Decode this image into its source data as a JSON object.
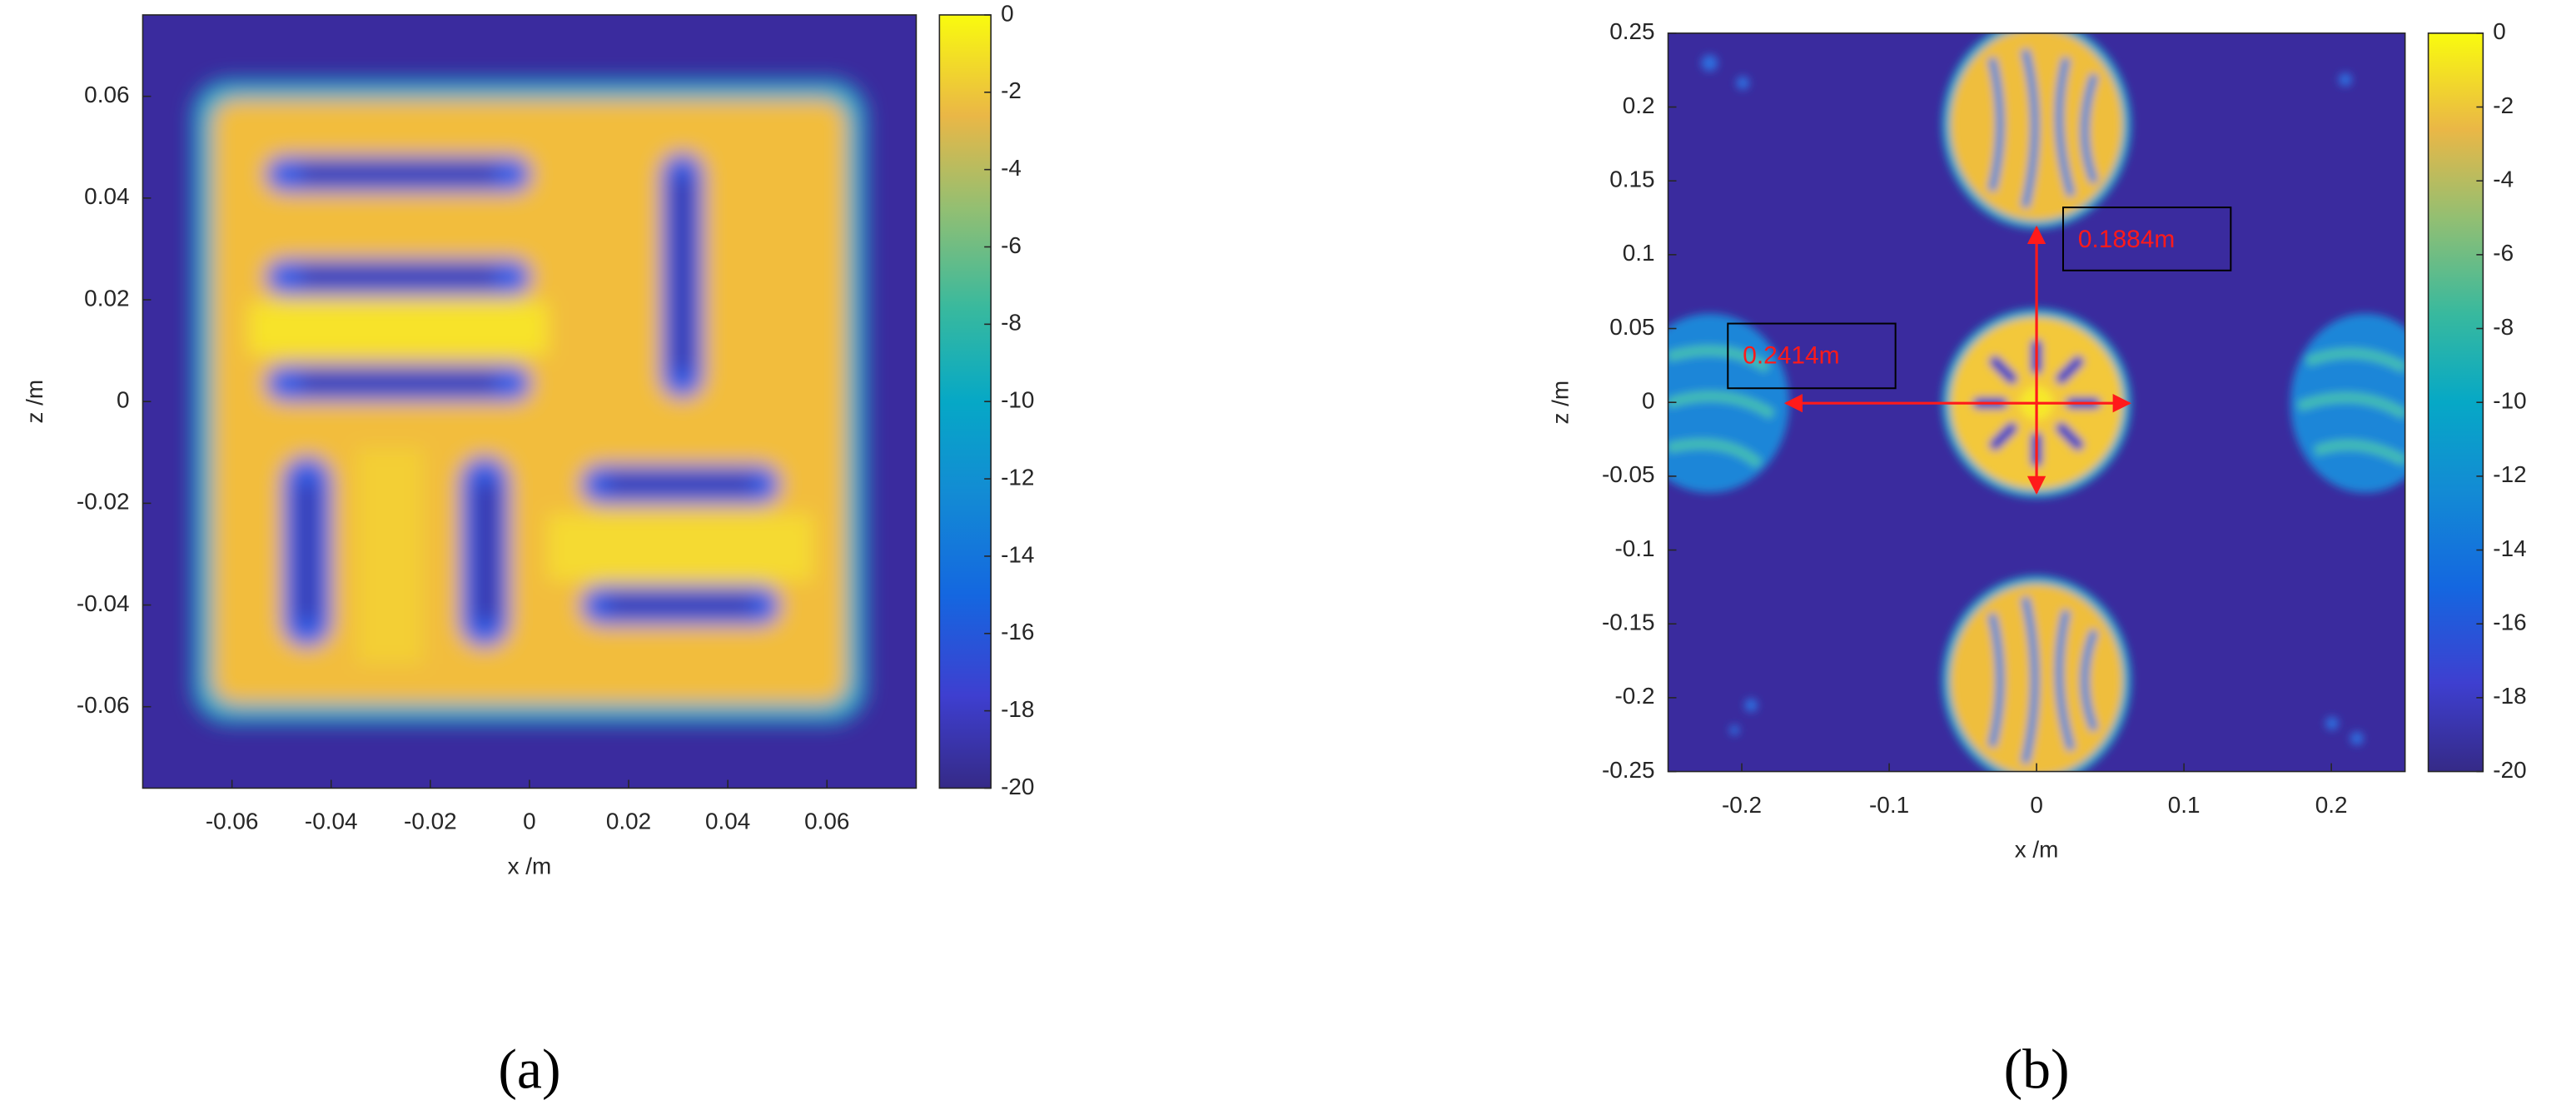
{
  "chart_data": [
    {
      "type": "heatmap",
      "xlabel": "x /m",
      "ylabel": "z /m",
      "xlim": [
        -0.078,
        0.078
      ],
      "ylim": [
        -0.076,
        0.076
      ],
      "xticks": [
        -0.06,
        -0.04,
        -0.02,
        0,
        0.02,
        0.04,
        0.06
      ],
      "yticks": [
        -0.06,
        -0.04,
        -0.02,
        0,
        0.02,
        0.04,
        0.06
      ],
      "clim": [
        -20,
        0
      ],
      "cticks": [
        -20,
        -18,
        -16,
        -14,
        -12,
        -10,
        -8,
        -6,
        -4,
        -2,
        0
      ],
      "caption": "(a)"
    },
    {
      "type": "heatmap",
      "xlabel": "x /m",
      "ylabel": "z /m",
      "xlim": [
        -0.25,
        0.25
      ],
      "ylim": [
        -0.25,
        0.25
      ],
      "xticks": [
        -0.2,
        -0.1,
        0,
        0.1,
        0.2
      ],
      "yticks": [
        -0.25,
        -0.2,
        -0.15,
        -0.1,
        -0.05,
        0,
        0.05,
        0.1,
        0.15,
        0.2,
        0.25
      ],
      "clim": [
        -20,
        0
      ],
      "cticks": [
        -20,
        -18,
        -16,
        -14,
        -12,
        -10,
        -8,
        -6,
        -4,
        -2,
        0
      ],
      "annotations": [
        "0.1884m",
        "0.2414m"
      ],
      "caption": "(b)"
    }
  ]
}
